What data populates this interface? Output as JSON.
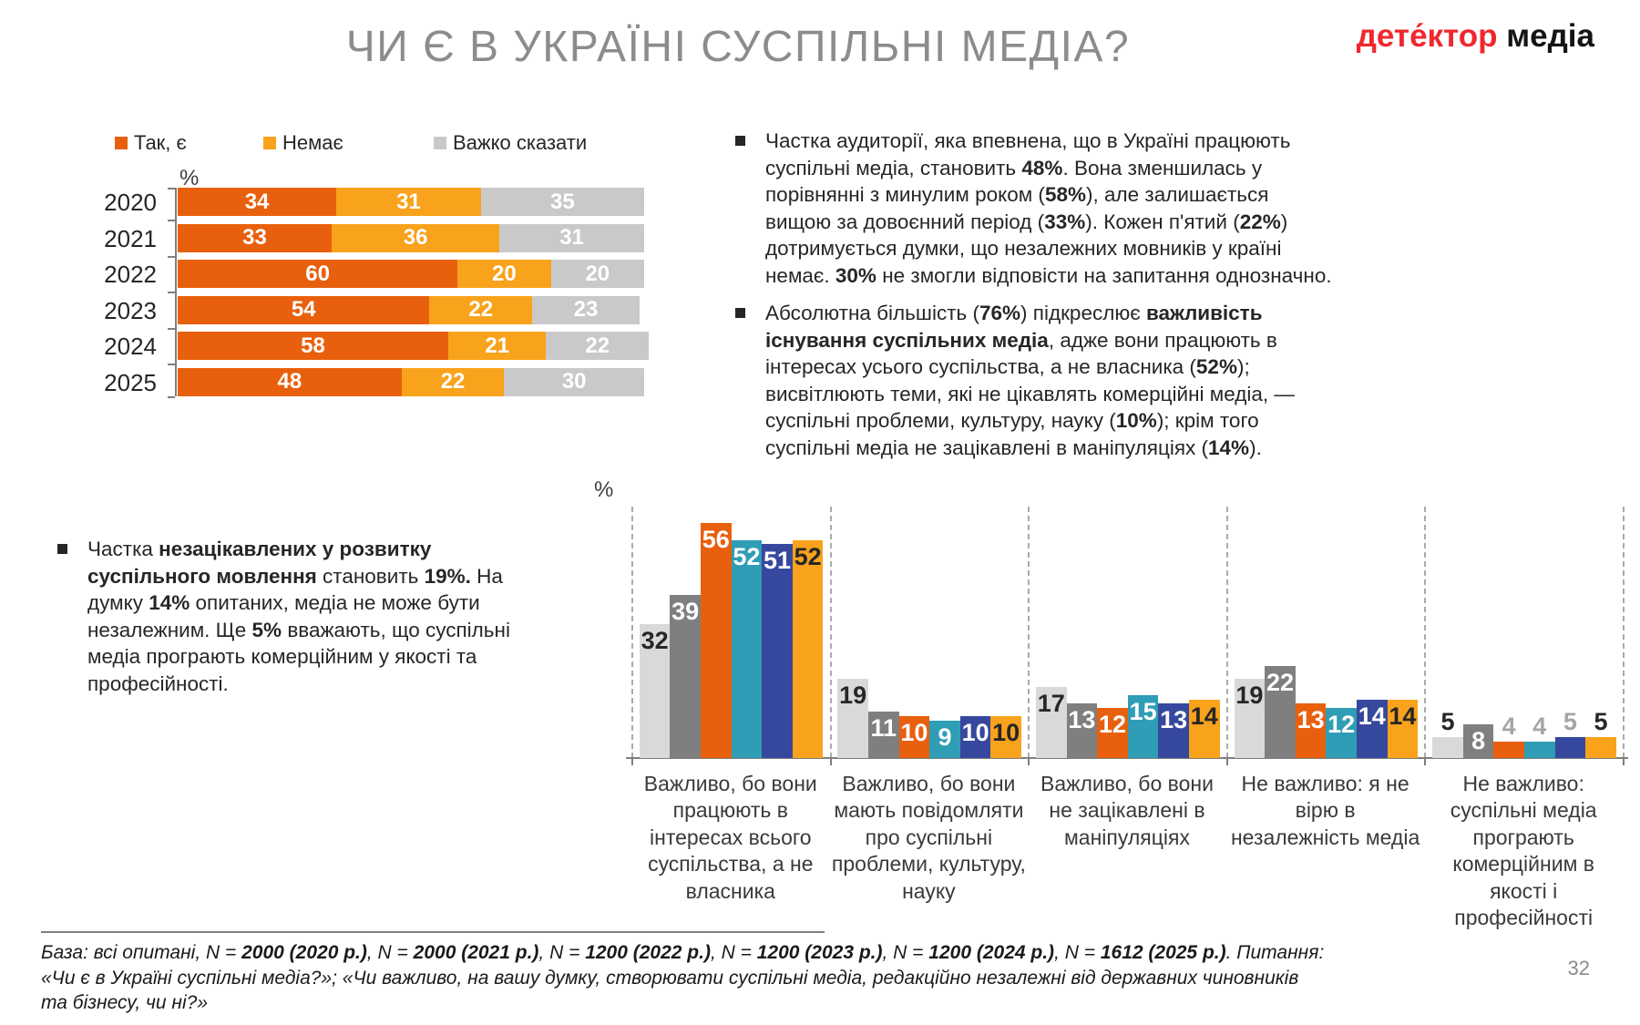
{
  "header": {
    "title": "ЧИ Є В УКРАЇНІ СУСПІЛЬНІ МЕДІА?",
    "logo_red": "дете́ктор",
    "logo_black": "медіа"
  },
  "chart_data": [
    {
      "type": "bar",
      "subtype": "horizontal-stacked",
      "title": "ЧИ Є В УКРАЇНІ СУСПІЛЬНІ МЕДІА?",
      "unit_label": "%",
      "legend_position": "top",
      "xlim": [
        0,
        100
      ],
      "categories": [
        "2020",
        "2021",
        "2022",
        "2023",
        "2024",
        "2025"
      ],
      "series": [
        {
          "name": "Так, є",
          "color": "#E8600D",
          "values": [
            34,
            33,
            60,
            54,
            58,
            48
          ]
        },
        {
          "name": "Немає",
          "color": "#F9A21B",
          "values": [
            31,
            36,
            20,
            22,
            21,
            22
          ]
        },
        {
          "name": "Важко сказати",
          "color": "#C9C9C9",
          "values": [
            35,
            31,
            20,
            23,
            22,
            30
          ]
        }
      ]
    },
    {
      "type": "bar",
      "subtype": "vertical-grouped",
      "title": "",
      "unit_label": "%",
      "legend_position": "none",
      "ylim": [
        0,
        60
      ],
      "categories": [
        "Важливо, бо вони працюють в інтересах всього суспільства, а  не власника",
        "Важливо, бо вони мають повідомляти про  суспільні проблеми, культуру, науку",
        "Важливо, бо вони не зацікавлені в маніпуляціях",
        "Не важливо: я не вірю в незалежність медіа",
        "Не важливо: суспільні медіа програють комерційним в якості і професійності"
      ],
      "series": [
        {
          "name": "2020",
          "color": "#D9D9D9",
          "label_color": "#262626",
          "values": [
            32,
            19,
            17,
            19,
            5
          ]
        },
        {
          "name": "2021",
          "color": "#7F7F7F",
          "label_color": "#FFFFFF",
          "values": [
            39,
            11,
            13,
            22,
            8
          ]
        },
        {
          "name": "2022",
          "color": "#E8600D",
          "label_color": "#FFFFFF",
          "values": [
            56,
            10,
            12,
            13,
            4
          ]
        },
        {
          "name": "2023",
          "color": "#2F9DB6",
          "label_color": "#FFFFFF",
          "values": [
            52,
            9,
            15,
            12,
            4
          ]
        },
        {
          "name": "2024",
          "color": "#36489E",
          "label_color": "#FFFFFF",
          "values": [
            51,
            10,
            13,
            14,
            5
          ]
        },
        {
          "name": "2025",
          "color": "#F9A21B",
          "label_color": "#262626",
          "values": [
            52,
            10,
            14,
            14,
            5
          ]
        }
      ],
      "outside_label_color_default": "#A6A6A6",
      "outside_label_color_edge_series": "#262626"
    }
  ],
  "right_bullets": [
    {
      "segments": [
        {
          "t": "Частка аудиторії, яка впевнена, що в Україні працюють суспільні медіа, становить "
        },
        {
          "t": "48%",
          "b": 1
        },
        {
          "t": ". Вона зменшилась у порівнянні з минулим роком ("
        },
        {
          "t": "58%",
          "b": 1
        },
        {
          "t": "), але залишається вищою за довоєнний період ("
        },
        {
          "t": "33%",
          "b": 1
        },
        {
          "t": "). Кожен п'ятий ("
        },
        {
          "t": "22%",
          "b": 1
        },
        {
          "t": ") дотримується думки, що незалежних мовників у країні немає. "
        },
        {
          "t": "30%",
          "b": 1
        },
        {
          "t": " не змогли відповісти на запитання однозначно."
        }
      ]
    },
    {
      "segments": [
        {
          "t": "Абсолютна більшість ("
        },
        {
          "t": "76%",
          "b": 1
        },
        {
          "t": ") підкреслює "
        },
        {
          "t": "важливість існування суспільних медіа",
          "b": 1
        },
        {
          "t": ", адже вони працюють в інтересах усього суспільства, а не власника ("
        },
        {
          "t": "52%",
          "b": 1
        },
        {
          "t": "); висвітлюють теми, які не цікавлять комерційні медіа, — суспільні проблеми, культуру, науку ("
        },
        {
          "t": "10%",
          "b": 1
        },
        {
          "t": "); крім того суспільні медіа не зацікавлені в маніпуляціях ("
        },
        {
          "t": "14%",
          "b": 1
        },
        {
          "t": ")."
        }
      ]
    }
  ],
  "left_bullet": {
    "segments": [
      {
        "t": "Частка "
      },
      {
        "t": "незацікавлених у розвитку суспільного мовлення",
        "b": 1
      },
      {
        "t": " становить "
      },
      {
        "t": "19%.",
        "b": 1
      },
      {
        "t": " На думку "
      },
      {
        "t": "14%",
        "b": 1
      },
      {
        "t": " опитаних, медіа не може бути незалежним. Ще "
      },
      {
        "t": "5%",
        "b": 1
      },
      {
        "t": " вважають, що суспільні медіа програють комерційним у якості та професійності."
      }
    ]
  },
  "footer": {
    "segments": [
      {
        "t": "База: всі опитані, N = "
      },
      {
        "t": "2000 (2020 р.)",
        "b": 1
      },
      {
        "t": ", N = "
      },
      {
        "t": "2000 (2021 р.)",
        "b": 1
      },
      {
        "t": ", N = "
      },
      {
        "t": "1200 (2022 р.)",
        "b": 1
      },
      {
        "t": ", N = "
      },
      {
        "t": "1200 (2023 р.)",
        "b": 1
      },
      {
        "t": ", N = "
      },
      {
        "t": "1200 (2024 р.)",
        "b": 1
      },
      {
        "t": ", N = "
      },
      {
        "t": "1612 (2025 р.)",
        "b": 1
      },
      {
        "t": ". Питання: «Чи є в Україні суспільні медіа?»; «Чи важливо, на вашу думку, створювати суспільні медіа, редакційно незалежні від державних чиновників та бізнесу, чи ні?»"
      }
    ],
    "page_number": "32"
  }
}
